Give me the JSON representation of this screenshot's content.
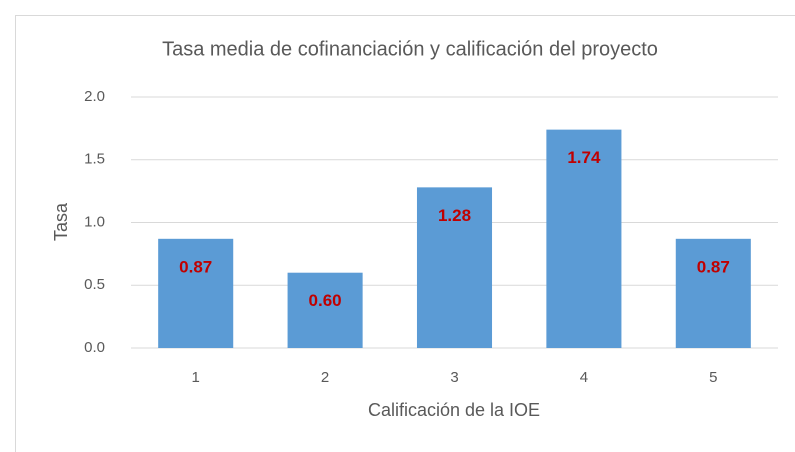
{
  "chart_data": {
    "type": "bar",
    "title": "Tasa media de cofinanciación y calificación del proyecto",
    "x_label": "Calificación de la IOE",
    "y_label": "Tasa",
    "categories": [
      "1",
      "2",
      "3",
      "4",
      "5"
    ],
    "values": [
      0.87,
      0.6,
      1.28,
      1.74,
      0.87
    ],
    "value_labels": [
      "0.87",
      "0.60",
      "1.28",
      "1.74",
      "0.87"
    ],
    "color": "#5b9bd5",
    "value_label_color": "#c00000",
    "ylim": [
      0,
      2
    ],
    "yticks": [
      {
        "value": 0,
        "label": "0.0"
      },
      {
        "value": 0.5,
        "label": "0.5"
      },
      {
        "value": 1,
        "label": "1.0"
      },
      {
        "value": 1.5,
        "label": "1.5"
      },
      {
        "value": 2,
        "label": "2.0"
      }
    ],
    "grid": true
  }
}
